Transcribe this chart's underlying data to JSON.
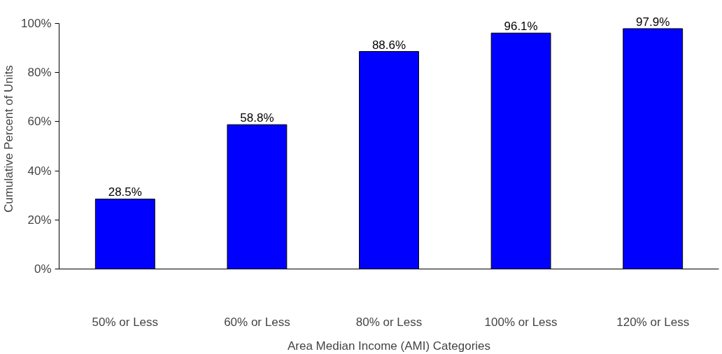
{
  "chart_data": {
    "type": "bar",
    "xlabel": "Area Median Income (AMI) Categories",
    "ylabel": "Cumulative Percent of Units",
    "categories": [
      "50% or Less",
      "60% or Less",
      "80% or Less",
      "100% or Less",
      "120% or Less"
    ],
    "values": [
      28.5,
      58.8,
      88.6,
      96.1,
      97.9
    ],
    "value_labels": [
      "28.5%",
      "58.8%",
      "88.6%",
      "96.1%",
      "97.9%"
    ],
    "color": "#0000ff",
    "ylim": [
      0,
      100
    ],
    "yticks": [
      {
        "value": 0,
        "label": "0%"
      },
      {
        "value": 20,
        "label": "20%"
      },
      {
        "value": 40,
        "label": "40%"
      },
      {
        "value": 60,
        "label": "60%"
      },
      {
        "value": 80,
        "label": "80%"
      },
      {
        "value": 100,
        "label": "100%"
      }
    ],
    "grid": false
  }
}
